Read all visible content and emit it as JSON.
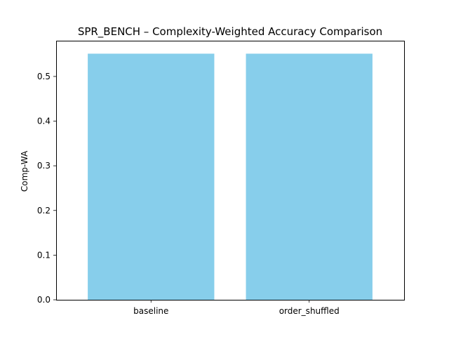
{
  "chart_data": {
    "type": "bar",
    "title": "SPR_BENCH – Complexity-Weighted Accuracy Comparison",
    "xlabel": "",
    "ylabel": "Comp-WA",
    "categories": [
      "baseline",
      "order_shuffled"
    ],
    "values": [
      0.551,
      0.551
    ],
    "ylim": [
      0,
      0.58
    ],
    "yticks": [
      "0.0",
      "0.1",
      "0.2",
      "0.3",
      "0.4",
      "0.5"
    ],
    "grid": false,
    "bar_color": "#87ceeb"
  }
}
